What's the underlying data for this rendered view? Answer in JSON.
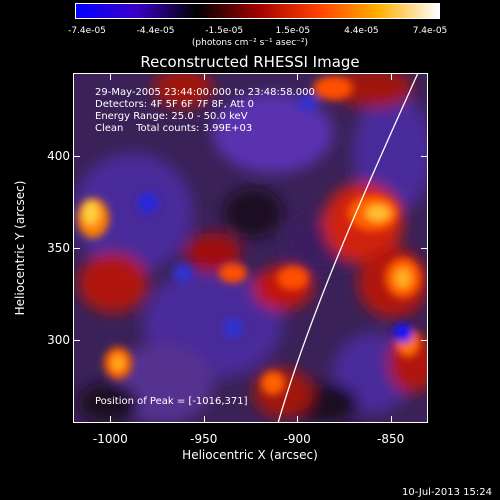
{
  "colorbar": {
    "tick_labels": [
      "-7.4e-05",
      "-4.4e-05",
      "-1.5e-05",
      "1.5e-05",
      "4.4e-05",
      "7.4e-05"
    ],
    "units_label": "(photons cm⁻² s⁻¹ asec⁻²)",
    "colors": [
      "#0000ff",
      "#3a00c8",
      "#000000",
      "#a00000",
      "#ff4000",
      "#ffb000",
      "#ffffff"
    ]
  },
  "plot": {
    "title": "Reconstructed RHESSI Image",
    "info_lines": [
      "29-May-2005 23:44:00.000 to 23:48:58.000",
      "Detectors: 4F 5F 6F 7F 8F, Att 0",
      "Energy Range: 25.0 - 50.0 keV",
      "Clean    Total counts: 3.99E+03"
    ],
    "peak_text": "Position of Peak = [-1016,371]",
    "x_axis": {
      "title": "Heliocentric X (arcsec)",
      "ticks": [
        "-1000",
        "-950",
        "-900",
        "-850"
      ],
      "range": [
        -1020,
        -830
      ]
    },
    "y_axis": {
      "title": "Heliocentric Y (arcsec)",
      "ticks": [
        "300",
        "350",
        "400"
      ],
      "range": [
        255,
        445
      ]
    }
  },
  "footer": {
    "timestamp": "10-Jul-2013 15:24"
  }
}
